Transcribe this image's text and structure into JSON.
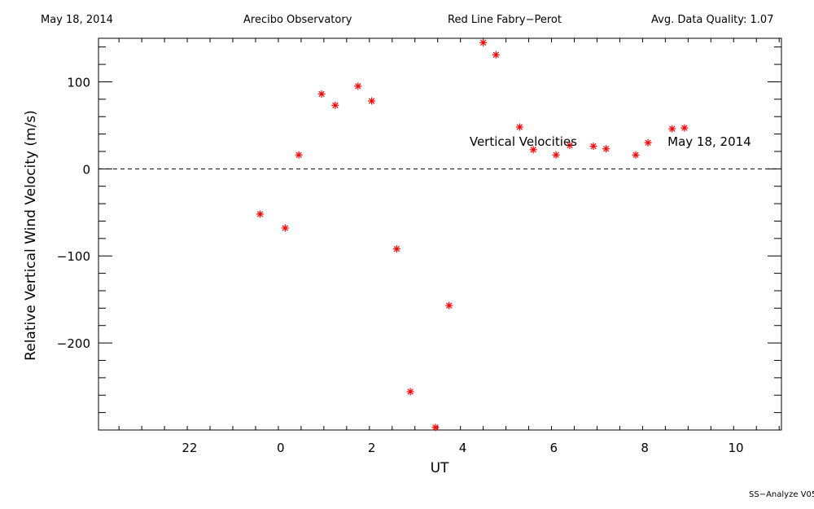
{
  "header": {
    "date": "May 18, 2014",
    "observatory": "Arecibo Observatory",
    "instrument": "Red Line Fabry−Perot",
    "quality": "Avg. Data Quality: 1.07"
  },
  "footer": "SS−Analyze V05",
  "chart_data": {
    "type": "scatter",
    "xlabel": "UT",
    "ylabel": "Relative Vertical Wind Velocity (m/s)",
    "xlim": [
      -1.95,
      13.05
    ],
    "ylim": [
      -300,
      150
    ],
    "x_ticks": [
      {
        "value": 0.05,
        "label": "22"
      },
      {
        "value": 2.05,
        "label": "0"
      },
      {
        "value": 4.05,
        "label": "2"
      },
      {
        "value": 6.05,
        "label": "4"
      },
      {
        "value": 8.05,
        "label": "6"
      },
      {
        "value": 10.05,
        "label": "8"
      },
      {
        "value": 12.05,
        "label": "10"
      }
    ],
    "y_ticks": [
      {
        "value": 100,
        "label": "100"
      },
      {
        "value": 0,
        "label": "0"
      },
      {
        "value": -100,
        "label": "−100"
      },
      {
        "value": -200,
        "label": "−200"
      }
    ],
    "zero_line": true,
    "marker_color": "#ff0000",
    "annotations": [
      {
        "text": "Vertical Velocities",
        "x": 6.2,
        "y": 33
      },
      {
        "text": "May 18, 2014",
        "x": 10.55,
        "y": 33
      }
    ],
    "series": [
      {
        "name": "",
        "x": [
          1.6,
          2.15,
          2.45,
          2.95,
          3.25,
          3.75,
          4.05,
          4.6,
          4.9,
          5.45,
          5.75,
          6.5,
          6.78,
          7.3,
          7.6,
          8.1,
          8.4,
          8.92,
          9.2,
          9.85,
          10.12,
          10.65,
          10.92
        ],
        "y": [
          -52,
          -68,
          16,
          86,
          73,
          95,
          78,
          -92,
          -256,
          -297,
          -157,
          145,
          131,
          48,
          22,
          16,
          27,
          26,
          23,
          16,
          30,
          46,
          47
        ]
      }
    ]
  }
}
